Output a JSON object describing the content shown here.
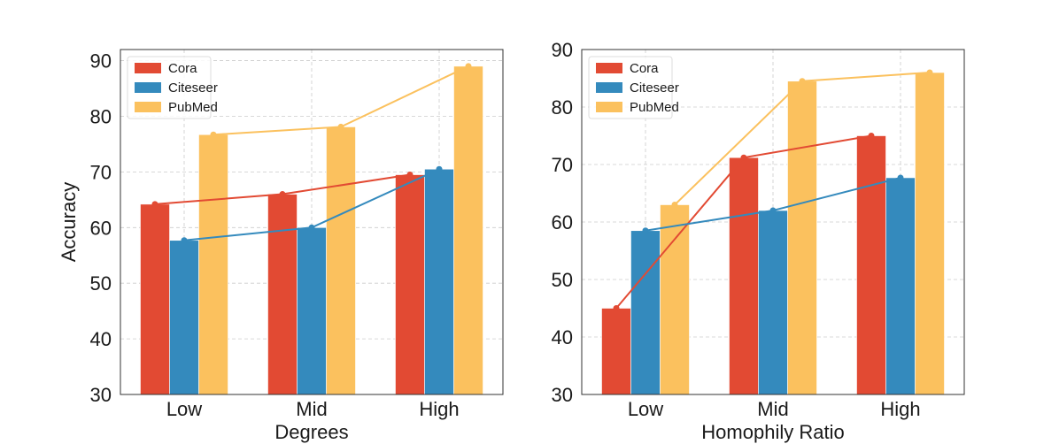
{
  "chart_data": [
    {
      "type": "bar",
      "title": "",
      "xlabel": "Degrees",
      "ylabel": "Accuracy",
      "ylim": [
        30,
        92
      ],
      "yticks": [
        30,
        40,
        50,
        60,
        70,
        80,
        90
      ],
      "grid": true,
      "legend_position": "top-left",
      "categories": [
        "Low",
        "Mid",
        "High"
      ],
      "series": [
        {
          "name": "Cora",
          "color": "#E24A33",
          "values": [
            64.2,
            66.0,
            69.5
          ]
        },
        {
          "name": "Citeseer",
          "color": "#348ABD",
          "values": [
            57.7,
            60.0,
            70.5
          ]
        },
        {
          "name": "PubMed",
          "color": "#FBC15E",
          "values": [
            76.7,
            78.1,
            89.0
          ]
        }
      ],
      "overlay_lines": true
    },
    {
      "type": "bar",
      "title": "",
      "xlabel": "Homophily Ratio",
      "ylabel": "",
      "ylim": [
        30,
        90
      ],
      "yticks": [
        30,
        40,
        50,
        60,
        70,
        80,
        90
      ],
      "grid": true,
      "legend_position": "top-left",
      "categories": [
        "Low",
        "Mid",
        "High"
      ],
      "series": [
        {
          "name": "Cora",
          "color": "#E24A33",
          "values": [
            45.0,
            71.2,
            75.0
          ]
        },
        {
          "name": "Citeseer",
          "color": "#348ABD",
          "values": [
            58.5,
            62.0,
            67.7
          ]
        },
        {
          "name": "PubMed",
          "color": "#FBC15E",
          "values": [
            63.0,
            84.5,
            86.0
          ]
        }
      ],
      "overlay_lines": true
    }
  ]
}
